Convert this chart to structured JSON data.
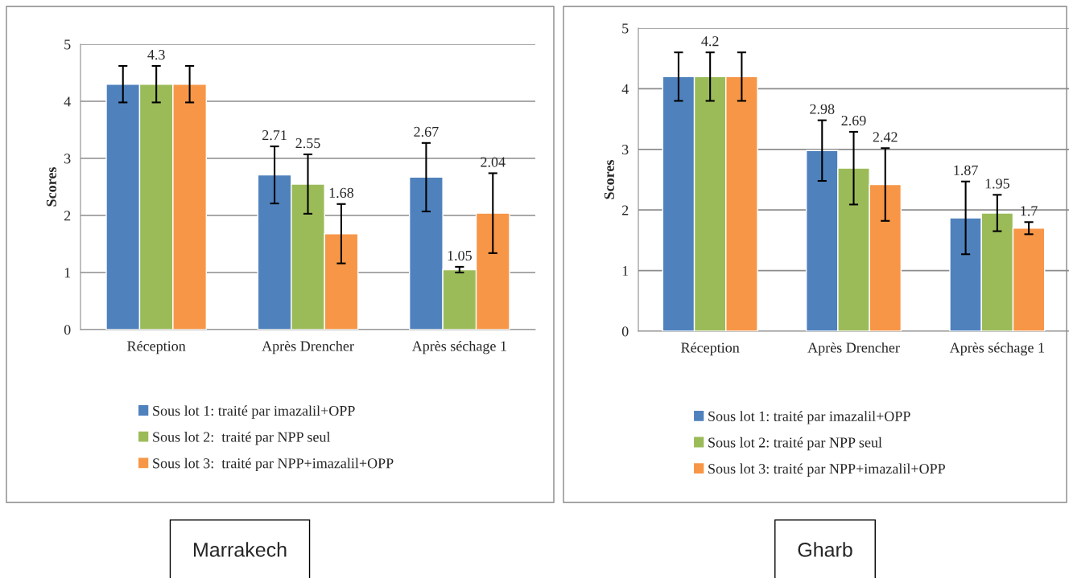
{
  "chart_data": [
    {
      "type": "bar",
      "ylabel": "Scores",
      "categories": [
        "Réception",
        "Après Drencher",
        "Après séchage 1"
      ],
      "ylim": [
        0,
        5
      ],
      "yticks": [
        0,
        1,
        2,
        3,
        4,
        5
      ],
      "grid": "y",
      "legend": "bottom",
      "annotations": [
        "Marrakech"
      ],
      "series": [
        {
          "name": "Sous lot 1: traité par imazalil+OPP",
          "color": "#4f81bd",
          "values": [
            4.3,
            2.71,
            2.67
          ],
          "errors": [
            0.32,
            0.5,
            0.6
          ],
          "value_labels": [
            null,
            "2.71",
            "2.67"
          ]
        },
        {
          "name": "Sous lot 2:  traité par NPP seul",
          "color": "#9bbb59",
          "values": [
            4.3,
            2.55,
            1.05
          ],
          "errors": [
            0.32,
            0.52,
            0.05
          ],
          "value_labels": [
            "4.3",
            "2.55",
            "1.05"
          ]
        },
        {
          "name": "Sous lot 3:  traité par NPP+imazalil+OPP",
          "color": "#f79646",
          "values": [
            4.3,
            1.68,
            2.04
          ],
          "errors": [
            0.32,
            0.52,
            0.7
          ],
          "value_labels": [
            null,
            "1.68",
            "2.04"
          ]
        }
      ]
    },
    {
      "type": "bar",
      "ylabel": "Scores",
      "categories": [
        "Réception",
        "Après Drencher",
        "Après séchage 1"
      ],
      "ylim": [
        0,
        5
      ],
      "yticks": [
        0,
        1,
        2,
        3,
        4,
        5
      ],
      "grid": "y",
      "legend": "bottom",
      "annotations": [
        "Gharb"
      ],
      "series": [
        {
          "name": "Sous lot 1: traité par imazalil+OPP",
          "color": "#4f81bd",
          "values": [
            4.2,
            2.98,
            1.87
          ],
          "errors": [
            0.4,
            0.5,
            0.6
          ],
          "value_labels": [
            null,
            "2.98",
            "1.87"
          ]
        },
        {
          "name": "Sous lot 2: traité par NPP seul",
          "color": "#9bbb59",
          "values": [
            4.2,
            2.69,
            1.95
          ],
          "errors": [
            0.4,
            0.6,
            0.3
          ],
          "value_labels": [
            "4.2",
            "2.69",
            "1.95"
          ]
        },
        {
          "name": "Sous lot 3: traité par NPP+imazalil+OPP",
          "color": "#f79646",
          "values": [
            4.2,
            2.42,
            1.7
          ],
          "errors": [
            0.4,
            0.6,
            0.1
          ],
          "value_labels": [
            null,
            "2.42",
            "1.7"
          ]
        }
      ]
    }
  ]
}
